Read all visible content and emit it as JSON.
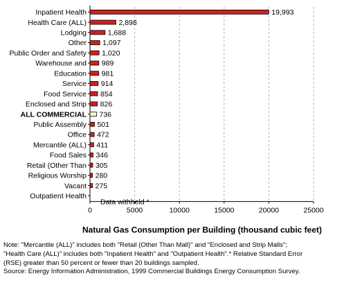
{
  "chart_data": {
    "type": "bar",
    "orientation": "horizontal",
    "categories": [
      "Inpatient Health",
      "Health Care (ALL)",
      "Lodging",
      "Other",
      "Public Order and Safety",
      "Warehouse and",
      "Education",
      "Service",
      "Food Service",
      "Enclosed and Strip",
      "ALL COMMERCIAL",
      "Public Assembly",
      "Office",
      "Mercantile (ALL)",
      "Food Sales",
      "Retail (Other Than",
      "Religious Worship",
      "Vacant",
      "Outpatient Health"
    ],
    "values": [
      19993,
      2898,
      1688,
      1097,
      1020,
      989,
      981,
      914,
      854,
      826,
      736,
      501,
      472,
      411,
      346,
      305,
      280,
      275,
      null
    ],
    "value_labels": [
      "19,993",
      "2,898",
      "1,688",
      "1,097",
      "1,020",
      "989",
      "981",
      "914",
      "854",
      "826",
      "736",
      "501",
      "472",
      "411",
      "346",
      "305",
      "280",
      "275",
      ""
    ],
    "highlight_category": "ALL COMMERCIAL",
    "withheld_label": "Data withheld *",
    "xlabel": "Natural Gas Consumption per Building (thousand cubic feet)",
    "xlim": [
      0,
      25000
    ],
    "xticks": [
      0,
      5000,
      10000,
      15000,
      20000,
      25000
    ],
    "xtick_labels": [
      "0",
      "5000",
      "10000",
      "15000",
      "20000",
      "25000"
    ],
    "grid": "vertical dashed",
    "colors": {
      "bar": "#cc2222",
      "highlight_bar": "#ffffcc",
      "bar_edge": "#000000",
      "grid": "#b0b0b0"
    }
  },
  "notes": {
    "line1": "Note: \"Mercantile (ALL)\" includes both \"Retail (Other Than Mall)\" and \"Enclosed and Strip Malls\";",
    "line2": "\"Health Care (ALL)\" includes both \"Inpatient Health\" and \"Outpatient Health\".* Relative Standard Error",
    "line3": "(RSE) greater than 50 percent or fewer than 20 buildings sampled.",
    "source": "Source: Energy Information Administration, 1999 Commercial Buildings Energy Consumption Survey."
  }
}
